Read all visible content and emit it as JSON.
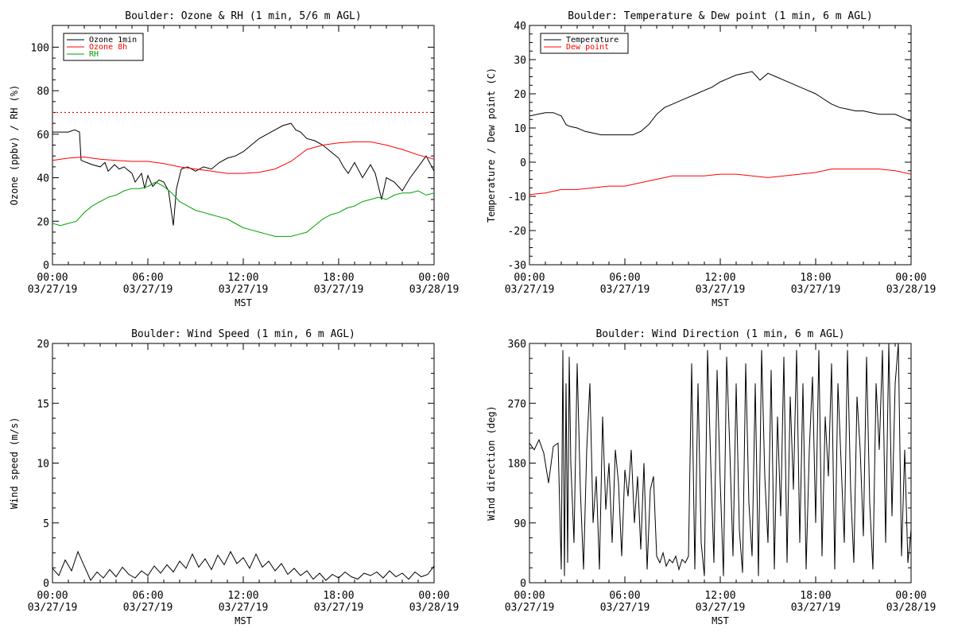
{
  "chart_data": [
    {
      "type": "line",
      "title": "Boulder: Ozone & RH (1 min, 5/6 m AGL)",
      "ylabel": "Ozone (ppbv) / RH (%)",
      "xlabel": "MST",
      "ylim": [
        0,
        110
      ],
      "yticks": [
        0,
        20,
        40,
        60,
        80,
        100
      ],
      "xtick_labels": [
        [
          "00:00",
          "03/27/19"
        ],
        [
          "06:00",
          "03/27/19"
        ],
        [
          "12:00",
          "03/27/19"
        ],
        [
          "18:00",
          "03/27/19"
        ],
        [
          "00:00",
          "03/28/19"
        ]
      ],
      "x_hours": [
        0,
        24
      ],
      "legend_position": "top-left",
      "reference_line": {
        "y": 70,
        "color": "#ff0000",
        "style": "dotted"
      },
      "series": [
        {
          "name": "Ozone 1min",
          "color": "#000000",
          "x": [
            0,
            0.5,
            1,
            1.4,
            1.7,
            1.8,
            2.5,
            3,
            3.3,
            3.5,
            3.9,
            4.2,
            4.5,
            5,
            5.2,
            5.6,
            5.8,
            6,
            6.3,
            6.7,
            7,
            7.3,
            7.6,
            7.8,
            8.1,
            8.5,
            9,
            9.5,
            10,
            10.5,
            11,
            11.5,
            12,
            12.5,
            13,
            13.5,
            14,
            14.5,
            15,
            15.3,
            15.6,
            16,
            16.5,
            17,
            17.5,
            18,
            18.3,
            18.6,
            19,
            19.5,
            20,
            20.3,
            20.7,
            21,
            21.5,
            22,
            22.5,
            23,
            23.5,
            24
          ],
          "y": [
            61,
            61,
            61,
            62,
            61,
            48,
            46,
            45,
            47,
            43,
            46,
            44,
            45,
            42,
            38,
            42,
            35,
            41,
            36,
            39,
            38,
            34,
            18,
            35,
            44,
            45,
            43,
            45,
            44,
            47,
            49,
            50,
            52,
            55,
            58,
            60,
            62,
            64,
            65,
            62,
            61,
            58,
            57,
            55,
            52,
            49,
            45,
            42,
            47,
            40,
            46,
            42,
            30,
            40,
            38,
            34,
            40,
            45,
            50,
            43
          ]
        },
        {
          "name": "Ozone 8h",
          "color": "#ff0000",
          "x": [
            0,
            1,
            2,
            3,
            4,
            5,
            6,
            7,
            8,
            9,
            10,
            11,
            12,
            13,
            14,
            15,
            16,
            17,
            18,
            19,
            20,
            21,
            22,
            23,
            24
          ],
          "y": [
            48,
            49,
            49.5,
            48.5,
            48,
            47.5,
            47.5,
            46.5,
            45,
            44,
            43,
            42,
            42,
            42.5,
            44,
            47.5,
            53,
            55,
            56,
            56.5,
            56.5,
            55,
            53,
            50.5,
            48.5
          ]
        },
        {
          "name": "RH",
          "color": "#00a000",
          "x": [
            0,
            0.5,
            1,
            1.5,
            2,
            2.5,
            3,
            3.5,
            4,
            4.5,
            5,
            5.5,
            6,
            6.5,
            7,
            7.5,
            8,
            8.5,
            9,
            9.5,
            10,
            10.5,
            11,
            11.5,
            12,
            12.5,
            13,
            13.5,
            14,
            14.5,
            15,
            15.5,
            16,
            16.5,
            17,
            17.5,
            18,
            18.5,
            19,
            19.5,
            20,
            20.5,
            21,
            21.5,
            22,
            22.5,
            23,
            23.5,
            24
          ],
          "y": [
            19,
            18,
            19,
            20,
            24,
            27,
            29,
            31,
            32,
            34,
            35,
            35,
            36,
            38,
            36,
            33,
            29,
            27,
            25,
            24,
            23,
            22,
            21,
            19,
            17,
            16,
            15,
            14,
            13,
            13,
            13,
            14,
            15,
            18,
            21,
            23,
            24,
            26,
            27,
            29,
            30,
            31,
            30,
            32,
            33,
            33,
            34,
            32,
            33
          ]
        }
      ]
    },
    {
      "type": "line",
      "title": "Boulder: Temperature & Dew point (1 min, 6 m AGL)",
      "ylabel": "Temperature / Dew point (C)",
      "xlabel": "MST",
      "ylim": [
        -30,
        40
      ],
      "yticks": [
        -30,
        -20,
        -10,
        0,
        10,
        20,
        30,
        40
      ],
      "xtick_labels": [
        [
          "00:00",
          "03/27/19"
        ],
        [
          "06:00",
          "03/27/19"
        ],
        [
          "12:00",
          "03/27/19"
        ],
        [
          "18:00",
          "03/27/19"
        ],
        [
          "00:00",
          "03/28/19"
        ]
      ],
      "x_hours": [
        0,
        24
      ],
      "legend_position": "top-left",
      "series": [
        {
          "name": "Temperature",
          "color": "#000000",
          "x": [
            0,
            0.5,
            1,
            1.5,
            2,
            2.3,
            2.5,
            3,
            3.5,
            4,
            4.5,
            5,
            5.5,
            6,
            6.5,
            7,
            7.5,
            8,
            8.5,
            9,
            9.5,
            10,
            10.5,
            11,
            11.5,
            12,
            12.5,
            13,
            13.5,
            14,
            14.5,
            15,
            15.5,
            16,
            16.5,
            17,
            17.5,
            18,
            18.5,
            19,
            19.5,
            20,
            20.5,
            21,
            21.5,
            22,
            22.5,
            23,
            23.5,
            24
          ],
          "y": [
            13.5,
            14,
            14.5,
            14.5,
            13.5,
            11,
            10.5,
            10,
            9,
            8.5,
            8,
            8,
            8,
            8,
            8,
            9,
            11,
            14,
            16,
            17,
            18,
            19,
            20,
            21,
            22,
            23.5,
            24.5,
            25.5,
            26,
            26.5,
            24,
            26,
            25,
            24,
            23,
            22,
            21,
            20,
            18.5,
            17,
            16,
            15.5,
            15,
            15,
            14.5,
            14,
            14,
            14,
            13,
            12
          ]
        },
        {
          "name": "Dew point",
          "color": "#ff0000",
          "x": [
            0,
            1,
            2,
            3,
            4,
            5,
            6,
            7,
            8,
            9,
            10,
            11,
            12,
            13,
            14,
            15,
            16,
            17,
            18,
            19,
            20,
            21,
            22,
            23,
            24
          ],
          "y": [
            -9.5,
            -9,
            -8,
            -8,
            -7.5,
            -7,
            -7,
            -6,
            -5,
            -4,
            -4,
            -4,
            -3.5,
            -3.5,
            -4,
            -4.5,
            -4,
            -3.5,
            -3,
            -2,
            -2,
            -2,
            -2,
            -2.5,
            -3.5
          ]
        }
      ]
    },
    {
      "type": "line",
      "title": "Boulder: Wind Speed (1 min, 6 m AGL)",
      "ylabel": "Wind speed (m/s)",
      "xlabel": "MST",
      "ylim": [
        0,
        20
      ],
      "yticks": [
        0,
        5,
        10,
        15,
        20
      ],
      "xtick_labels": [
        [
          "00:00",
          "03/27/19"
        ],
        [
          "06:00",
          "03/27/19"
        ],
        [
          "12:00",
          "03/27/19"
        ],
        [
          "18:00",
          "03/27/19"
        ],
        [
          "00:00",
          "03/28/19"
        ]
      ],
      "x_hours": [
        0,
        24
      ],
      "series": [
        {
          "name": "",
          "color": "#000000",
          "x": [
            0,
            0.4,
            0.8,
            1.2,
            1.6,
            2,
            2.4,
            2.8,
            3.2,
            3.6,
            4,
            4.4,
            4.8,
            5.2,
            5.6,
            6,
            6.4,
            6.8,
            7.2,
            7.6,
            8,
            8.4,
            8.8,
            9.2,
            9.6,
            10,
            10.4,
            10.8,
            11.2,
            11.6,
            12,
            12.4,
            12.8,
            13.2,
            13.6,
            14,
            14.4,
            14.8,
            15.2,
            15.6,
            16,
            16.4,
            16.8,
            17.2,
            17.6,
            18,
            18.4,
            18.8,
            19.2,
            19.6,
            20,
            20.4,
            20.8,
            21.2,
            21.6,
            22,
            22.4,
            22.8,
            23.2,
            23.6,
            24
          ],
          "y": [
            1.2,
            0.6,
            1.9,
            1.0,
            2.6,
            1.4,
            0.2,
            0.9,
            0.4,
            1.1,
            0.5,
            1.3,
            0.7,
            0.4,
            1.0,
            0.6,
            1.4,
            0.8,
            1.5,
            0.9,
            1.8,
            1.2,
            2.4,
            1.3,
            2.0,
            1.1,
            2.3,
            1.5,
            2.6,
            1.6,
            2.1,
            1.2,
            2.4,
            1.3,
            1.8,
            1.0,
            1.6,
            0.7,
            1.2,
            0.6,
            1.0,
            0.3,
            0.8,
            0.2,
            0.7,
            0.4,
            0.9,
            0.5,
            0.3,
            0.8,
            0.6,
            0.9,
            0.4,
            1.0,
            0.5,
            0.8,
            0.3,
            0.9,
            0.5,
            0.7,
            1.4
          ]
        }
      ]
    },
    {
      "type": "line",
      "title": "Boulder: Wind Direction (1 min, 6 m AGL)",
      "ylabel": "Wind direction (deg)",
      "xlabel": "MST",
      "ylim": [
        0,
        360
      ],
      "yticks": [
        0,
        90,
        180,
        270,
        360
      ],
      "xtick_labels": [
        [
          "00:00",
          "03/27/19"
        ],
        [
          "06:00",
          "03/27/19"
        ],
        [
          "12:00",
          "03/27/19"
        ],
        [
          "18:00",
          "03/27/19"
        ],
        [
          "00:00",
          "03/28/19"
        ]
      ],
      "x_hours": [
        0,
        24
      ],
      "series": [
        {
          "name": "",
          "color": "#000000",
          "x": [
            0,
            0.3,
            0.6,
            0.9,
            1.2,
            1.5,
            1.8,
            2.0,
            2.1,
            2.2,
            2.3,
            2.4,
            2.5,
            2.6,
            2.8,
            3.0,
            3.2,
            3.4,
            3.6,
            3.8,
            4.0,
            4.2,
            4.4,
            4.6,
            4.8,
            5.0,
            5.2,
            5.4,
            5.6,
            5.8,
            6.0,
            6.2,
            6.4,
            6.6,
            6.8,
            7.0,
            7.2,
            7.4,
            7.6,
            7.8,
            8.0,
            8.2,
            8.4,
            8.6,
            8.8,
            9.0,
            9.2,
            9.4,
            9.6,
            9.8,
            10.0,
            10.2,
            10.4,
            10.6,
            10.8,
            11.0,
            11.2,
            11.4,
            11.6,
            11.8,
            12.0,
            12.2,
            12.4,
            12.6,
            12.8,
            13.0,
            13.2,
            13.4,
            13.6,
            13.8,
            14.0,
            14.2,
            14.4,
            14.6,
            14.8,
            15.0,
            15.2,
            15.4,
            15.6,
            15.8,
            16.0,
            16.2,
            16.4,
            16.6,
            16.8,
            17.0,
            17.2,
            17.4,
            17.6,
            17.8,
            18.0,
            18.2,
            18.4,
            18.6,
            18.8,
            19.0,
            19.2,
            19.4,
            19.6,
            19.8,
            20.0,
            20.2,
            20.4,
            20.6,
            20.8,
            21.0,
            21.2,
            21.4,
            21.6,
            21.8,
            22.0,
            22.2,
            22.4,
            22.6,
            22.8,
            23.0,
            23.2,
            23.4,
            23.6,
            23.8,
            24.0
          ],
          "y": [
            210,
            200,
            215,
            195,
            150,
            205,
            210,
            20,
            350,
            10,
            300,
            30,
            340,
            180,
            60,
            330,
            140,
            20,
            200,
            300,
            90,
            160,
            20,
            250,
            110,
            180,
            60,
            200,
            150,
            40,
            170,
            130,
            200,
            90,
            160,
            50,
            180,
            20,
            140,
            160,
            40,
            30,
            45,
            25,
            35,
            30,
            40,
            20,
            35,
            30,
            40,
            330,
            20,
            300,
            60,
            10,
            350,
            180,
            30,
            320,
            150,
            10,
            340,
            200,
            40,
            300,
            80,
            15,
            330,
            120,
            40,
            300,
            10,
            350,
            160,
            60,
            320,
            20,
            250,
            100,
            340,
            30,
            280,
            140,
            350,
            60,
            300,
            20,
            200,
            310,
            90,
            350,
            40,
            250,
            160,
            330,
            20,
            300,
            180,
            60,
            350,
            140,
            30,
            280,
            200,
            70,
            340,
            120,
            20,
            300,
            200,
            350,
            60,
            360,
            100,
            300,
            360,
            40,
            200,
            30,
            80
          ]
        }
      ]
    }
  ]
}
